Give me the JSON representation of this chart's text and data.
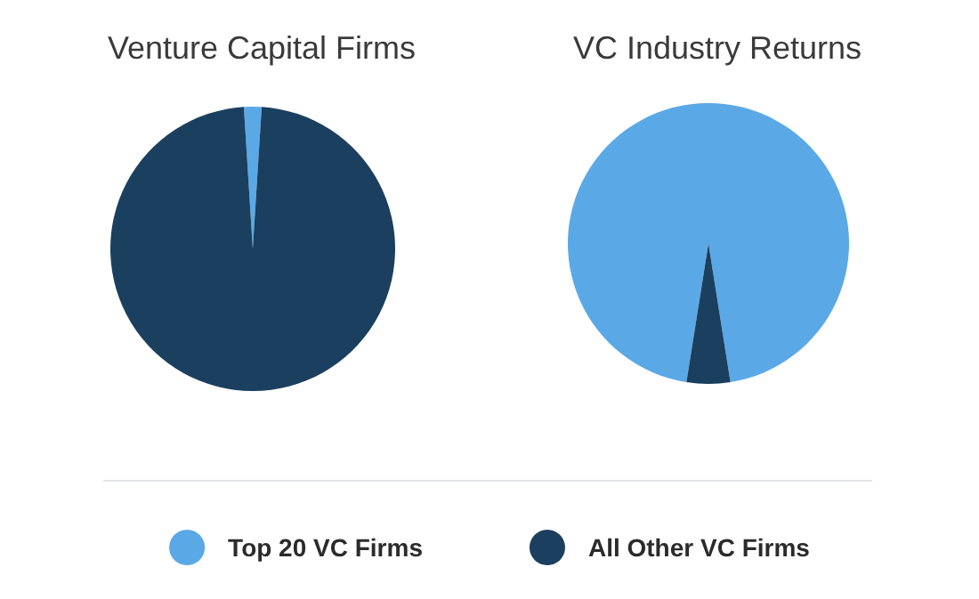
{
  "chart_data": {
    "type": "pie",
    "categories": [
      "Top 20 VC Firms",
      "All Other VC Firms"
    ],
    "colors": [
      "#5aa9e6",
      "#1b3f5f"
    ],
    "legend": "bottom",
    "series": [
      {
        "name": "Venture Capital Firms",
        "values": [
          2,
          98
        ]
      },
      {
        "name": "VC Industry Returns",
        "values": [
          95,
          5
        ]
      }
    ]
  }
}
